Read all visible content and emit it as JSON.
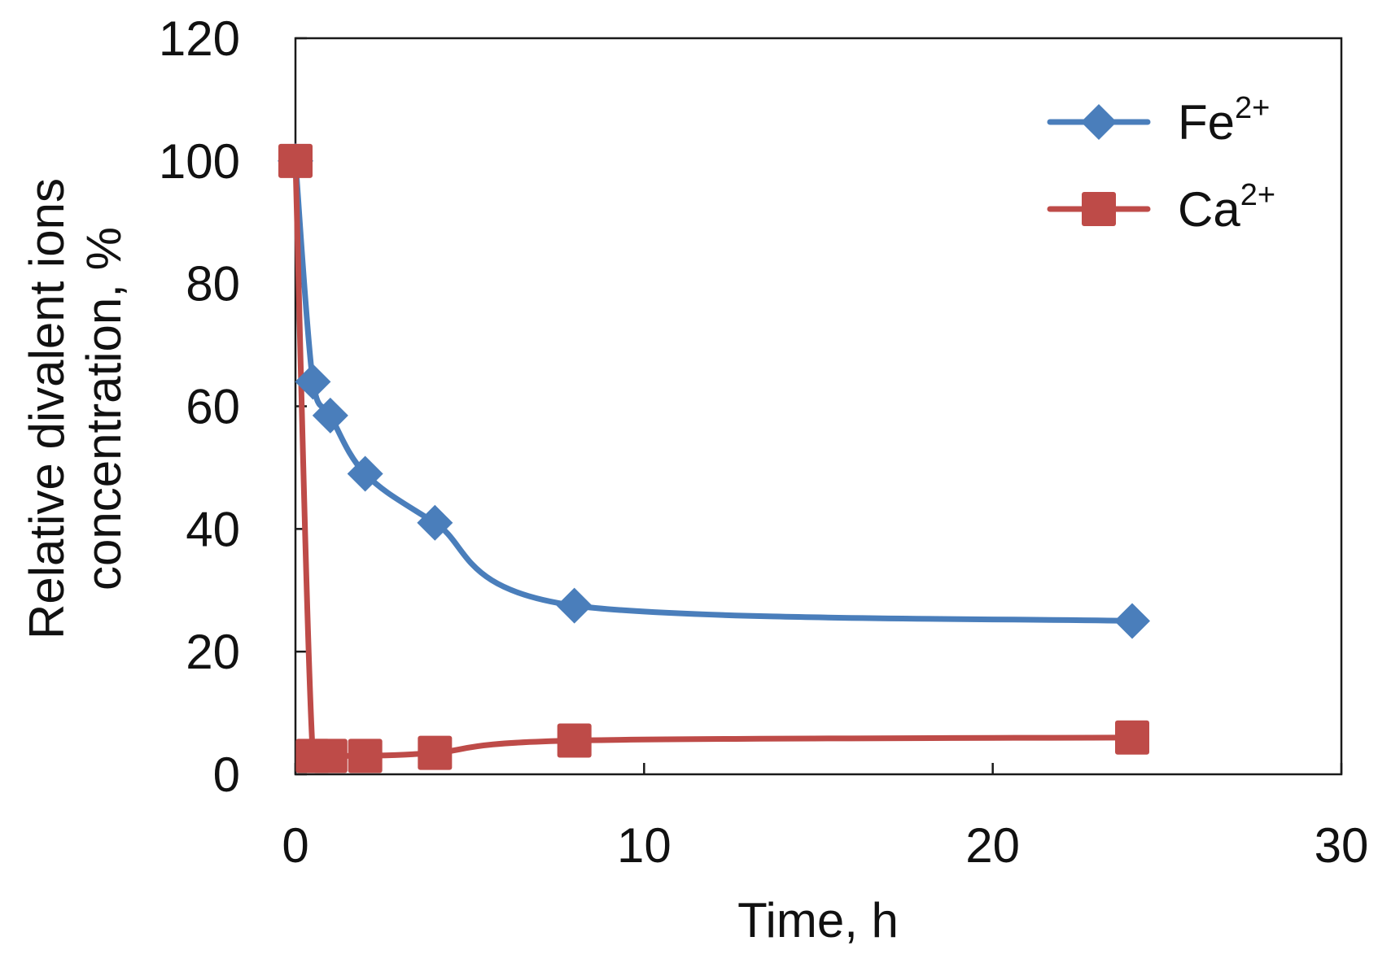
{
  "chart_data": {
    "type": "line",
    "xlabel": "Time, h",
    "ylabel": [
      "Relative divalent ions",
      "concentration, %"
    ],
    "xlim": [
      0,
      30
    ],
    "ylim": [
      0,
      120
    ],
    "xticks": [
      0,
      10,
      20,
      30
    ],
    "yticks": [
      0,
      20,
      40,
      60,
      80,
      100,
      120
    ],
    "grid": false,
    "legend": "top-right",
    "series": [
      {
        "name": "Fe",
        "superscript": "2+",
        "color": "#4a7ebb",
        "marker": "diamond",
        "x": [
          0,
          0.5,
          1,
          2,
          4,
          8,
          24
        ],
        "y": [
          100,
          64,
          58.5,
          49,
          41,
          27.5,
          25
        ]
      },
      {
        "name": "Ca",
        "superscript": "2+",
        "color": "#be4b48",
        "marker": "square",
        "x": [
          0,
          0.5,
          1,
          2,
          4,
          8,
          24
        ],
        "y": [
          100,
          3,
          3,
          3,
          3.5,
          5.5,
          6
        ]
      }
    ]
  }
}
